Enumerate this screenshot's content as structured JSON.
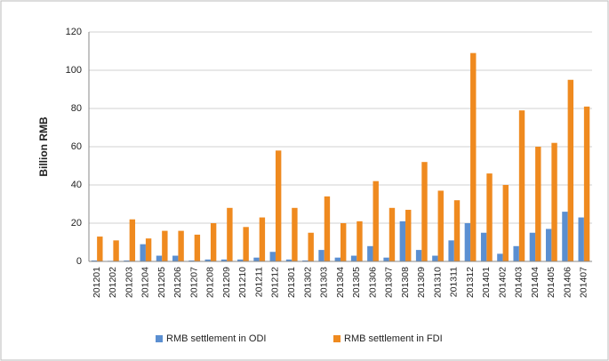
{
  "chart_data": {
    "type": "bar",
    "y_label": "Billion RMB",
    "categories": [
      "201201",
      "201202",
      "201203",
      "201204",
      "201205",
      "201206",
      "201207",
      "201208",
      "201209",
      "201210",
      "201211",
      "201212",
      "201301",
      "201302",
      "201303",
      "201304",
      "201305",
      "201306",
      "201307",
      "201308",
      "201309",
      "201310",
      "201311",
      "201312",
      "201401",
      "201402",
      "201403",
      "201404",
      "201405",
      "201406",
      "201407"
    ],
    "series": [
      {
        "name": "RMB settlement in ODI",
        "color": "#5b8fd1",
        "values": [
          0.5,
          0.3,
          0.5,
          9,
          3,
          3,
          0.5,
          1,
          1,
          1,
          2,
          5,
          1,
          0.5,
          6,
          2,
          3,
          8,
          2,
          21,
          6,
          3,
          11,
          20,
          15,
          4,
          8,
          15,
          17,
          26,
          23
        ]
      },
      {
        "name": "RMB settlement in FDI",
        "color": "#ef8a1f",
        "values": [
          13,
          11,
          22,
          12,
          16,
          16,
          14,
          20,
          28,
          18,
          23,
          58,
          28,
          15,
          34,
          20,
          21,
          42,
          28,
          27,
          52,
          37,
          32,
          109,
          46,
          40,
          79,
          60,
          62,
          95,
          81
        ]
      }
    ],
    "ylim": [
      0,
      120
    ],
    "yticks": [
      0,
      20,
      40,
      60,
      80,
      100,
      120
    ],
    "grid": true,
    "legend": "bottom"
  }
}
